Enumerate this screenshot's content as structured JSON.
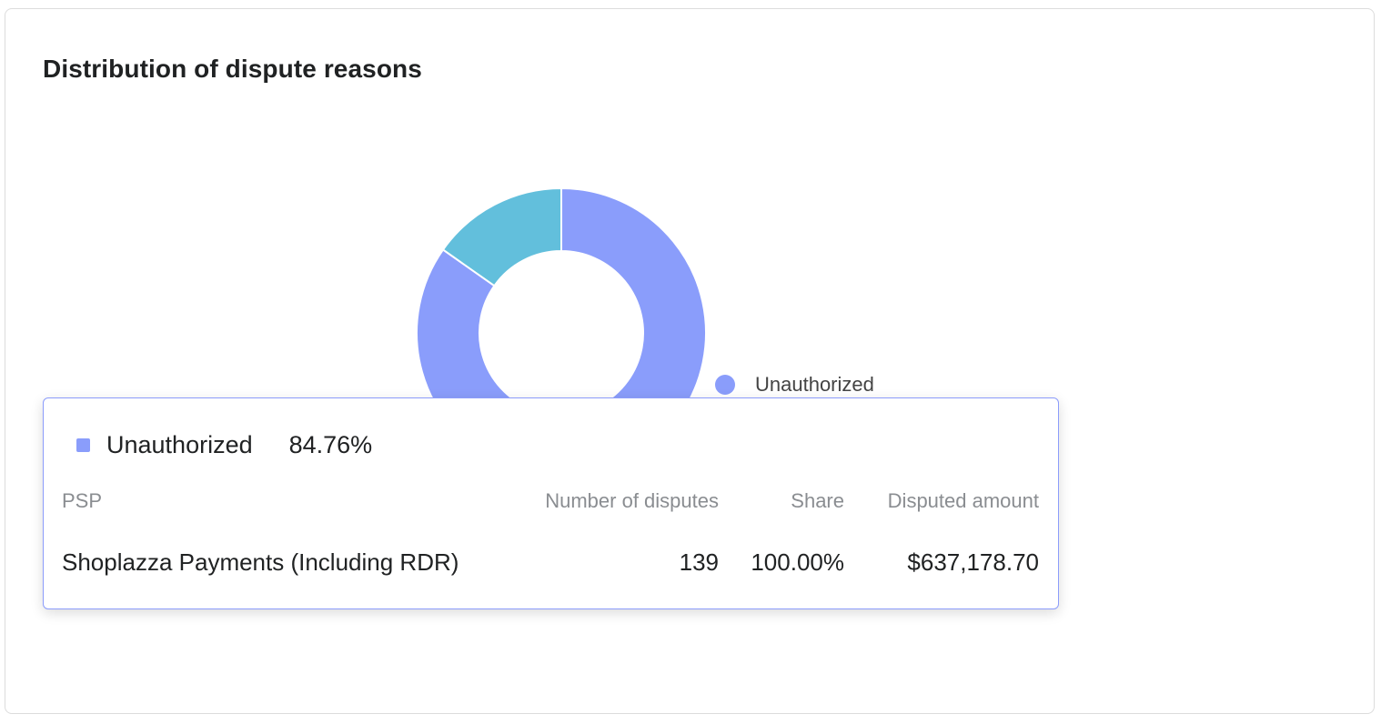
{
  "title": "Distribution of dispute reasons",
  "colors": {
    "unauthorized": "#8a9dfb",
    "second": "#62bfdc",
    "tooltip_border": "#8c9cfb"
  },
  "chart_data": {
    "type": "pie",
    "title": "Distribution of dispute reasons",
    "donut": true,
    "legend_position": "right",
    "slices": [
      {
        "name": "Unauthorized",
        "value": 84.76,
        "color": "#8a9dfb"
      },
      {
        "value": 15.24,
        "color": "#62bfdc"
      }
    ],
    "legend": [
      "Unauthorized"
    ]
  },
  "tooltip": {
    "series_name": "Unauthorized",
    "percent": "84.76%",
    "headers": {
      "psp": "PSP",
      "number": "Number of disputes",
      "share": "Share",
      "amount": "Disputed amount"
    },
    "rows": [
      {
        "psp": "Shoplazza Payments (Including RDR)",
        "number": "139",
        "share": "100.00%",
        "amount": "$637,178.70"
      }
    ]
  }
}
